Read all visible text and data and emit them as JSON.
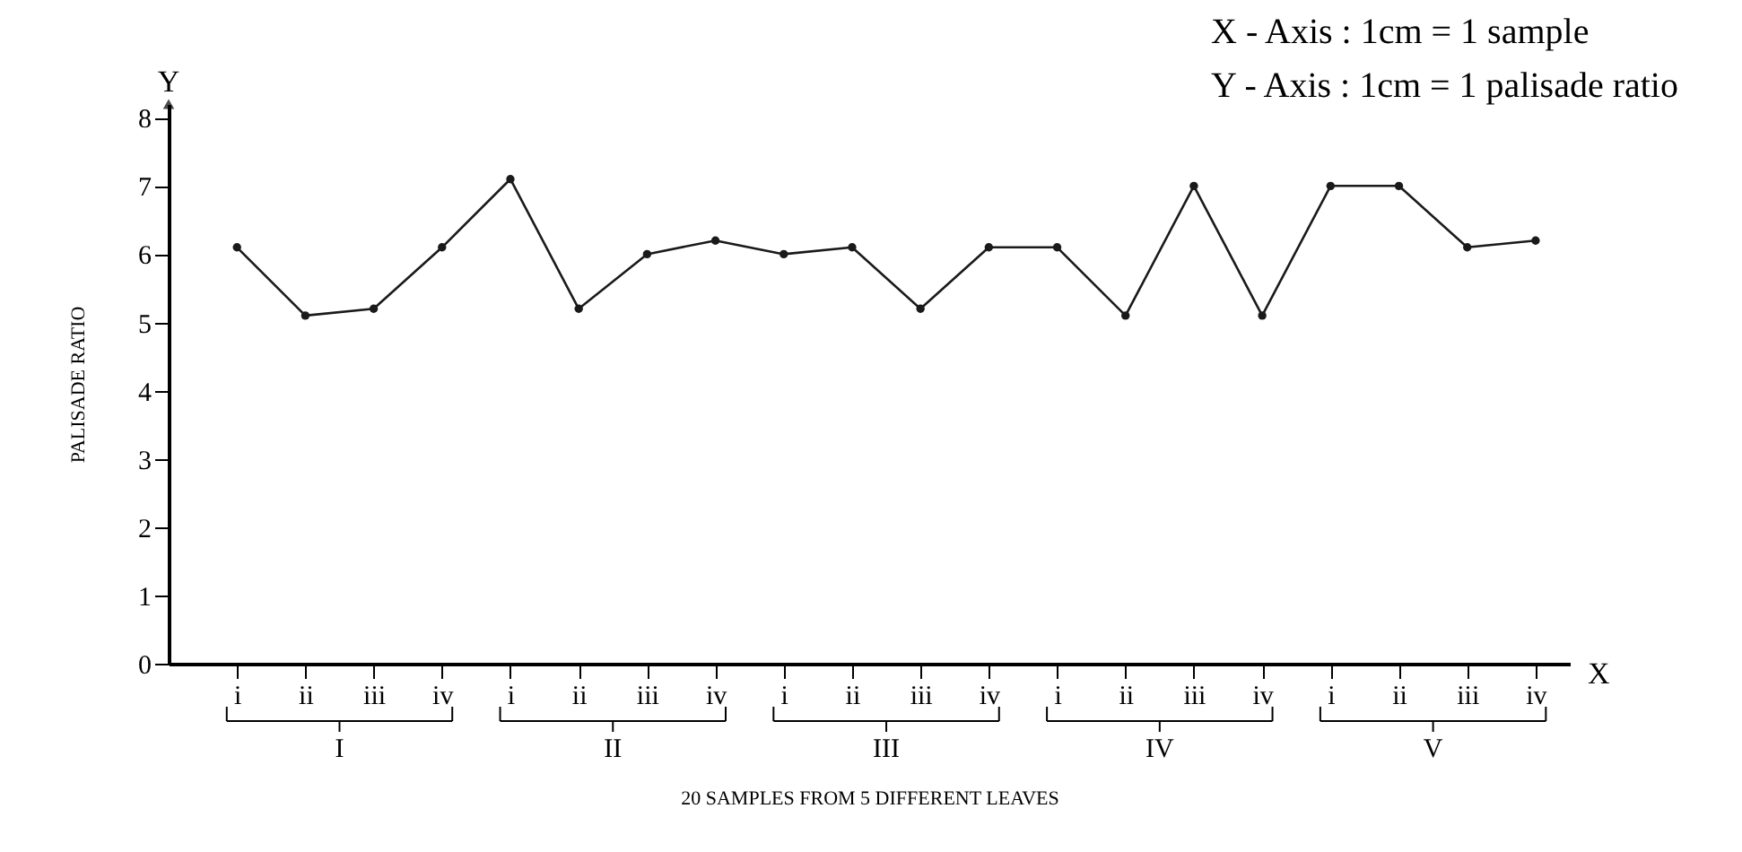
{
  "chart_data": {
    "type": "line",
    "xlabel": "20 SAMPLES FROM 5 DIFFERENT LEAVES",
    "ylabel": "PALISADE RATIO",
    "categories": [
      "i",
      "ii",
      "iii",
      "iv",
      "i",
      "ii",
      "iii",
      "iv",
      "i",
      "ii",
      "iii",
      "iv",
      "i",
      "ii",
      "iii",
      "iv",
      "i",
      "ii",
      "iii",
      "iv"
    ],
    "series": [
      {
        "color": "#1a1a1a",
        "values": [
          6.1,
          5.1,
          5.2,
          6.1,
          7.1,
          5.2,
          6.0,
          6.2,
          6.0,
          6.1,
          5.2,
          6.1,
          6.1,
          5.1,
          7.0,
          5.1,
          7.0,
          7.0,
          6.1,
          6.2
        ]
      }
    ],
    "ylim": [
      0,
      8.2
    ],
    "yticks": [
      0,
      1,
      2,
      3,
      4,
      5,
      6,
      7,
      8
    ],
    "grid": false,
    "marker": "circle",
    "line_style": "solid",
    "annotations": [
      "X - Axis : 1cm = 1 sample",
      "Y - Axis : 1cm = 1 palisade ratio",
      "X",
      "Y",
      {
        "text": "I"
      },
      {
        "text": "II"
      },
      {
        "text": "III"
      },
      {
        "text": "IV"
      },
      {
        "text": "V"
      }
    ]
  }
}
